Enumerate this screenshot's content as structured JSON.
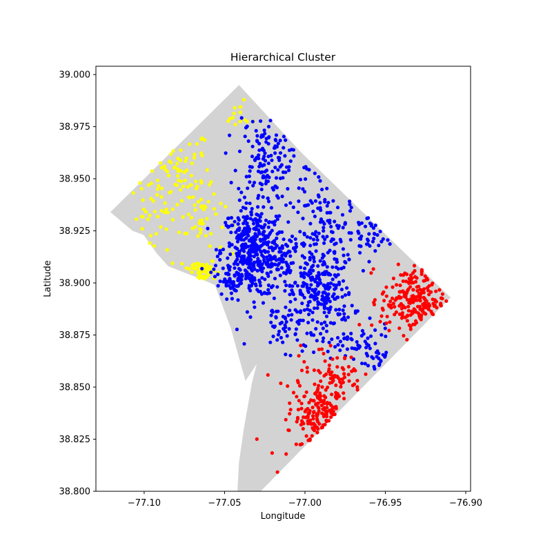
{
  "chart_data": {
    "type": "scatter",
    "title": "Hierarchical Cluster",
    "xlabel": "Longitude",
    "ylabel": "Latitude",
    "xlim": [
      -77.13,
      -76.897
    ],
    "ylim": [
      38.8,
      39.004
    ],
    "xticks": [
      -77.1,
      -77.05,
      -77.0,
      -76.95,
      -76.9
    ],
    "xtick_labels": [
      "−77.10",
      "−77.05",
      "−77.00",
      "−76.95",
      "−76.90"
    ],
    "yticks": [
      38.8,
      38.825,
      38.85,
      38.875,
      38.9,
      38.925,
      38.95,
      38.975,
      39.0
    ],
    "ytick_labels": [
      "38.800",
      "38.825",
      "38.850",
      "38.875",
      "38.900",
      "38.925",
      "38.950",
      "38.975",
      "39.000"
    ],
    "grid": false,
    "legend": "none",
    "boundary": {
      "color": "#d3d3d3",
      "points": [
        [
          -77.041,
          38.995
        ],
        [
          -77.0028,
          38.963
        ],
        [
          -76.9094,
          38.893
        ],
        [
          -77.039,
          38.791
        ],
        [
          -77.042,
          38.8
        ],
        [
          -77.041,
          38.814
        ],
        [
          -77.038,
          38.83
        ],
        [
          -77.033,
          38.852
        ],
        [
          -77.03,
          38.861
        ],
        [
          -77.037,
          38.853
        ],
        [
          -77.046,
          38.878
        ],
        [
          -77.056,
          38.899
        ],
        [
          -77.065,
          38.902
        ],
        [
          -77.085,
          38.908
        ],
        [
          -77.092,
          38.914
        ],
        [
          -77.1003,
          38.923
        ],
        [
          -77.1072,
          38.925
        ],
        [
          -77.121,
          38.934
        ]
      ]
    },
    "series": [
      {
        "color": "#ffff00",
        "regions": [
          {
            "cx": -77.082,
            "cy": 38.95,
            "sx": 0.012,
            "sy": 0.013,
            "n": 95
          },
          {
            "cx": -77.065,
            "cy": 38.906,
            "sx": 0.005,
            "sy": 0.003,
            "n": 60
          },
          {
            "cx": -77.064,
            "cy": 38.93,
            "sx": 0.007,
            "sy": 0.008,
            "n": 35
          },
          {
            "cx": -77.039,
            "cy": 38.981,
            "sx": 0.006,
            "sy": 0.004,
            "n": 14
          },
          {
            "cx": -77.098,
            "cy": 38.925,
            "sx": 0.005,
            "sy": 0.006,
            "n": 10
          }
        ]
      },
      {
        "color": "#0000ff",
        "regions": [
          {
            "cx": -77.032,
            "cy": 38.915,
            "sx": 0.01,
            "sy": 0.011,
            "n": 420
          },
          {
            "cx": -77.026,
            "cy": 38.96,
            "sx": 0.008,
            "sy": 0.01,
            "n": 120
          },
          {
            "cx": -76.99,
            "cy": 38.895,
            "sx": 0.01,
            "sy": 0.009,
            "n": 210
          },
          {
            "cx": -76.985,
            "cy": 38.925,
            "sx": 0.011,
            "sy": 0.009,
            "n": 110
          },
          {
            "cx": -77.008,
            "cy": 38.91,
            "sx": 0.01,
            "sy": 0.008,
            "n": 80
          },
          {
            "cx": -77.012,
            "cy": 38.88,
            "sx": 0.008,
            "sy": 0.006,
            "n": 50
          },
          {
            "cx": -76.97,
            "cy": 38.87,
            "sx": 0.012,
            "sy": 0.0045,
            "n": 55
          },
          {
            "cx": -76.958,
            "cy": 38.923,
            "sx": 0.006,
            "sy": 0.006,
            "n": 30
          },
          {
            "cx": -76.954,
            "cy": 38.864,
            "sx": 0.007,
            "sy": 0.003,
            "n": 20
          },
          {
            "cx": -77.0,
            "cy": 38.955,
            "sx": 0.01,
            "sy": 0.008,
            "n": 25
          },
          {
            "cx": -77.046,
            "cy": 38.903,
            "sx": 0.006,
            "sy": 0.003,
            "n": 40
          }
        ]
      },
      {
        "color": "#ff0000",
        "regions": [
          {
            "cx": -76.933,
            "cy": 38.892,
            "sx": 0.01,
            "sy": 0.008,
            "n": 210
          },
          {
            "cx": -76.988,
            "cy": 38.835,
            "sx": 0.008,
            "sy": 0.008,
            "n": 120
          },
          {
            "cx": -76.98,
            "cy": 38.855,
            "sx": 0.008,
            "sy": 0.006,
            "n": 65
          },
          {
            "cx": -77.002,
            "cy": 38.845,
            "sx": 0.01,
            "sy": 0.015,
            "n": 45
          }
        ]
      }
    ]
  }
}
